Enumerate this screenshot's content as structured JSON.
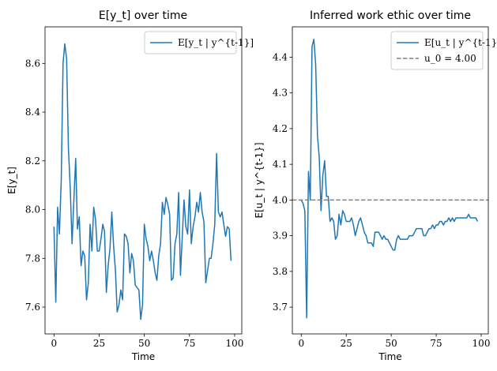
{
  "chart_data": [
    {
      "type": "line",
      "title": "E[y_t] over time",
      "xlabel": "Time",
      "ylabel": "E[y_t]",
      "xlim": [
        -4.95,
        103.95
      ],
      "ylim": [
        7.49,
        8.75
      ],
      "xticks": [
        0,
        25,
        50,
        75,
        100
      ],
      "xtick_labels": [
        "0",
        "25",
        "50",
        "75",
        "100"
      ],
      "yticks": [
        7.6,
        7.8,
        8.0,
        8.2,
        8.4,
        8.6
      ],
      "ytick_labels": [
        "7.6",
        "7.8",
        "8.0",
        "8.2",
        "8.4",
        "8.6"
      ],
      "grid": false,
      "legend_position": "top-right",
      "series": [
        {
          "name": "E[y_t | y^{t-1}]",
          "color": "#1f77b4",
          "style": "solid",
          "values": [
            7.93,
            7.62,
            8.01,
            7.9,
            8.12,
            8.6,
            8.68,
            8.62,
            8.25,
            8.09,
            7.86,
            8.04,
            8.21,
            7.92,
            7.97,
            7.77,
            7.83,
            7.81,
            7.63,
            7.7,
            7.94,
            7.83,
            8.01,
            7.96,
            7.83,
            7.83,
            7.88,
            7.94,
            7.91,
            7.66,
            7.77,
            7.84,
            7.99,
            7.85,
            7.75,
            7.58,
            7.61,
            7.67,
            7.63,
            7.9,
            7.89,
            7.86,
            7.74,
            7.82,
            7.79,
            7.69,
            7.68,
            7.67,
            7.55,
            7.61,
            7.94,
            7.88,
            7.85,
            7.79,
            7.83,
            7.79,
            7.74,
            7.71,
            7.81,
            7.86,
            8.03,
            7.98,
            8.05,
            8.02,
            7.98,
            7.71,
            7.72,
            7.86,
            7.9,
            8.07,
            7.73,
            7.89,
            8.04,
            7.93,
            7.9,
            8.08,
            7.86,
            7.93,
            7.97,
            8.03,
            7.99,
            8.07,
            7.99,
            7.95,
            7.7,
            7.75,
            7.8,
            7.8,
            7.86,
            7.94,
            8.23,
            7.99,
            7.97,
            7.99,
            7.94,
            7.89,
            7.93,
            7.92,
            7.79
          ]
        }
      ]
    },
    {
      "type": "line",
      "title": "Inferred work ethic over time",
      "xlabel": "Time",
      "ylabel": "E[u_t | y^{t-1}]",
      "xlim": [
        -4.95,
        103.95
      ],
      "ylim": [
        3.625,
        4.485
      ],
      "xticks": [
        0,
        25,
        50,
        75,
        100
      ],
      "xtick_labels": [
        "0",
        "25",
        "50",
        "75",
        "100"
      ],
      "yticks": [
        3.7,
        3.8,
        3.9,
        4.0,
        4.1,
        4.2,
        4.3,
        4.4
      ],
      "ytick_labels": [
        "3.7",
        "3.8",
        "3.9",
        "4.0",
        "4.1",
        "4.2",
        "4.3",
        "4.4"
      ],
      "grid": false,
      "legend_position": "top-right",
      "series": [
        {
          "name": "E[u_t | y^{t-1}]",
          "color": "#1f77b4",
          "style": "solid",
          "values": [
            4.0,
            3.99,
            3.97,
            3.67,
            4.08,
            4.0,
            4.43,
            4.45,
            4.38,
            4.18,
            4.12,
            3.97,
            4.07,
            4.11,
            4.01,
            4.01,
            3.94,
            3.95,
            3.94,
            3.89,
            3.9,
            3.96,
            3.93,
            3.97,
            3.96,
            3.94,
            3.94,
            3.94,
            3.95,
            3.93,
            3.9,
            3.92,
            3.94,
            3.95,
            3.93,
            3.91,
            3.9,
            3.88,
            3.88,
            3.88,
            3.87,
            3.91,
            3.91,
            3.91,
            3.9,
            3.89,
            3.9,
            3.89,
            3.89,
            3.88,
            3.87,
            3.86,
            3.86,
            3.89,
            3.9,
            3.89,
            3.89,
            3.89,
            3.89,
            3.89,
            3.9,
            3.9,
            3.9,
            3.91,
            3.92,
            3.92,
            3.92,
            3.92,
            3.9,
            3.9,
            3.91,
            3.92,
            3.92,
            3.93,
            3.92,
            3.93,
            3.93,
            3.94,
            3.94,
            3.93,
            3.94,
            3.94,
            3.95,
            3.94,
            3.95,
            3.94,
            3.95,
            3.95,
            3.95,
            3.95,
            3.95,
            3.95,
            3.95,
            3.96,
            3.95,
            3.95,
            3.95,
            3.95,
            3.94
          ]
        },
        {
          "name": "u_0 = 4.00",
          "color": "#808080",
          "style": "dashed",
          "constant": 4.0
        }
      ]
    }
  ]
}
